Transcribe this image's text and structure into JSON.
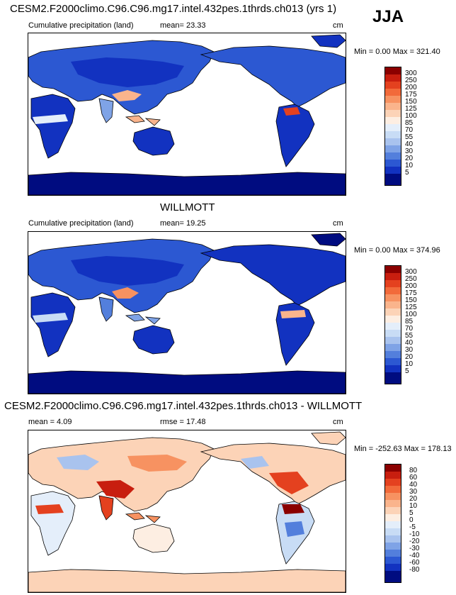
{
  "season": "JJA",
  "panels": [
    {
      "title": "CESM2.F2000climo.C96.C96.mg17.intel.432pes.1thrds.ch013 (yrs 1)",
      "label_left": "Cumulative precipitation (land)",
      "stat": "mean=  23.33",
      "units": "cm",
      "minmax": "Min =   0.00 Max = 321.40",
      "scale": "precip"
    },
    {
      "title": "WILLMOTT",
      "label_left": "Cumulative precipitation (land)",
      "stat": "mean=  19.25",
      "units": "cm",
      "minmax": "Min =   0.00 Max = 374.96",
      "scale": "precip"
    },
    {
      "title": "CESM2.F2000climo.C96.C96.mg17.intel.432pes.1thrds.ch013 - WILLMOTT",
      "label_left": "mean =   4.09",
      "stat": "rmse =  17.48",
      "units": "cm",
      "minmax": "Min = -252.63 Max = 178.13",
      "scale": "diff"
    }
  ],
  "colorbars": {
    "precip": {
      "labels": [
        "300",
        "250",
        "200",
        "175",
        "150",
        "125",
        "100",
        "85",
        "70",
        "55",
        "40",
        "30",
        "20",
        "10",
        "5"
      ],
      "colors": [
        "#8b0000",
        "#c81e0f",
        "#e4411f",
        "#f26a3a",
        "#f79261",
        "#fab48c",
        "#fcd3b7",
        "#fdeee2",
        "#e4eefa",
        "#c8dcf5",
        "#a9c3ee",
        "#7fa3e6",
        "#537fdc",
        "#2c58d2",
        "#1232c0",
        "#000c80"
      ]
    },
    "diff": {
      "labels": [
        "80",
        "60",
        "40",
        "30",
        "20",
        "10",
        "5",
        "0",
        "-5",
        "-10",
        "-20",
        "-30",
        "-40",
        "-60",
        "-80"
      ],
      "colors": [
        "#8b0000",
        "#c81e0f",
        "#e4411f",
        "#f26a3a",
        "#f79261",
        "#fab48c",
        "#fcd3b7",
        "#fdeee2",
        "#e4eefa",
        "#c8dcf5",
        "#a9c3ee",
        "#7fa3e6",
        "#537fdc",
        "#2c58d2",
        "#1232c0",
        "#000c80"
      ]
    }
  }
}
